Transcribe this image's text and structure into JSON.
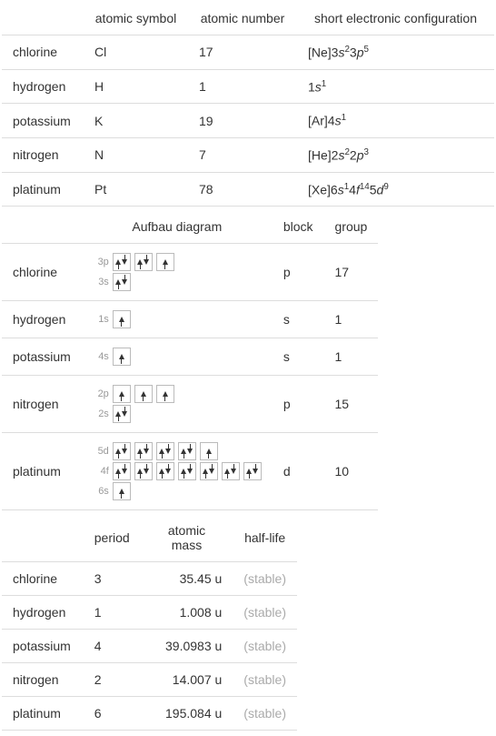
{
  "colors": {
    "border": "#dddddd",
    "text": "#333333",
    "muted": "#aaaaaa",
    "background": "#ffffff",
    "orbital_border": "#bbbbbb",
    "orbital_label": "#999999"
  },
  "typography": {
    "body_fontsize": 14,
    "orbital_label_fontsize": 11
  },
  "table1": {
    "headers": [
      "",
      "atomic symbol",
      "atomic number",
      "short electronic configuration"
    ],
    "rows": [
      {
        "element": "chlorine",
        "symbol": "Cl",
        "number": "17",
        "config": {
          "prefix": "[Ne]3",
          "parts": [
            {
              "letter": "s",
              "sup": "2"
            },
            {
              "plain": "3"
            },
            {
              "letter": "p",
              "sup": "5"
            }
          ]
        }
      },
      {
        "element": "hydrogen",
        "symbol": "H",
        "number": "1",
        "config": {
          "prefix": "1",
          "parts": [
            {
              "letter": "s",
              "sup": "1"
            }
          ]
        }
      },
      {
        "element": "potassium",
        "symbol": "K",
        "number": "19",
        "config": {
          "prefix": "[Ar]4",
          "parts": [
            {
              "letter": "s",
              "sup": "1"
            }
          ]
        }
      },
      {
        "element": "nitrogen",
        "symbol": "N",
        "number": "7",
        "config": {
          "prefix": "[He]2",
          "parts": [
            {
              "letter": "s",
              "sup": "2"
            },
            {
              "plain": "2"
            },
            {
              "letter": "p",
              "sup": "3"
            }
          ]
        }
      },
      {
        "element": "platinum",
        "symbol": "Pt",
        "number": "78",
        "config": {
          "prefix": "[Xe]6",
          "parts": [
            {
              "letter": "s",
              "sup": "1"
            },
            {
              "plain": "4"
            },
            {
              "letter": "f",
              "sup": "14"
            },
            {
              "plain": "5"
            },
            {
              "letter": "d",
              "sup": "9"
            }
          ]
        }
      }
    ]
  },
  "table2": {
    "headers": [
      "",
      "Aufbau diagram",
      "block",
      "group"
    ],
    "rows": [
      {
        "element": "chlorine",
        "aufbau": [
          {
            "label": "3p",
            "boxes": [
              "pair",
              "pair",
              "up"
            ]
          },
          {
            "label": "3s",
            "boxes": [
              "pair"
            ]
          }
        ],
        "block": "p",
        "group": "17"
      },
      {
        "element": "hydrogen",
        "aufbau": [
          {
            "label": "1s",
            "boxes": [
              "up"
            ]
          }
        ],
        "block": "s",
        "group": "1"
      },
      {
        "element": "potassium",
        "aufbau": [
          {
            "label": "4s",
            "boxes": [
              "up"
            ]
          }
        ],
        "block": "s",
        "group": "1"
      },
      {
        "element": "nitrogen",
        "aufbau": [
          {
            "label": "2p",
            "boxes": [
              "up",
              "up",
              "up"
            ]
          },
          {
            "label": "2s",
            "boxes": [
              "pair"
            ]
          }
        ],
        "block": "p",
        "group": "15"
      },
      {
        "element": "platinum",
        "aufbau": [
          {
            "label": "5d",
            "boxes": [
              "pair",
              "pair",
              "pair",
              "pair",
              "up"
            ]
          },
          {
            "label": "4f",
            "boxes": [
              "pair",
              "pair",
              "pair",
              "pair",
              "pair",
              "pair",
              "pair"
            ]
          },
          {
            "label": "6s",
            "boxes": [
              "up"
            ]
          }
        ],
        "block": "d",
        "group": "10"
      }
    ]
  },
  "table3": {
    "headers": [
      "",
      "period",
      "atomic mass",
      "half-life"
    ],
    "rows": [
      {
        "element": "chlorine",
        "period": "3",
        "mass": "35.45 u",
        "halflife": "(stable)"
      },
      {
        "element": "hydrogen",
        "period": "1",
        "mass": "1.008 u",
        "halflife": "(stable)"
      },
      {
        "element": "potassium",
        "period": "4",
        "mass": "39.0983 u",
        "halflife": "(stable)"
      },
      {
        "element": "nitrogen",
        "period": "2",
        "mass": "14.007 u",
        "halflife": "(stable)"
      },
      {
        "element": "platinum",
        "period": "6",
        "mass": "195.084 u",
        "halflife": "(stable)"
      }
    ]
  }
}
